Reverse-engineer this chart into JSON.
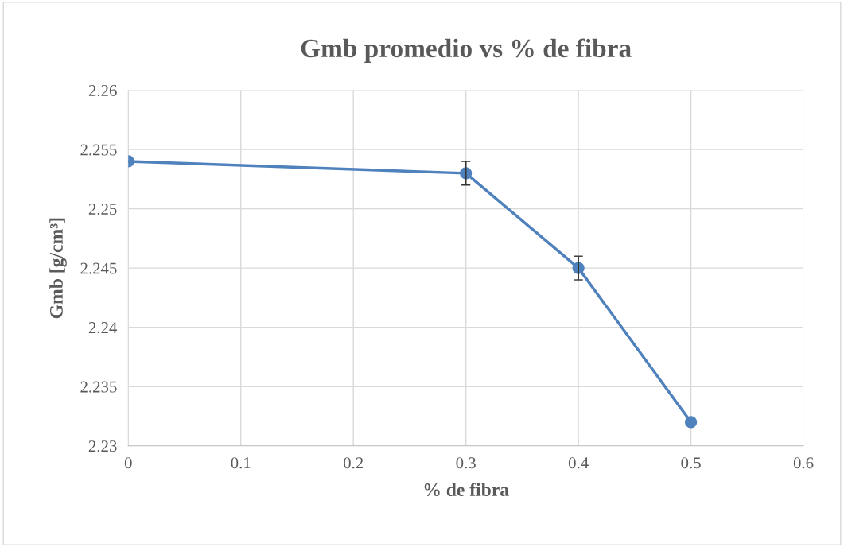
{
  "chart_data": {
    "type": "line",
    "title": "Gmb promedio vs % de fibra",
    "xlabel": "% de fibra",
    "ylabel": "Gmb [g/cm³]",
    "x": [
      0,
      0.3,
      0.4,
      0.5
    ],
    "series": [
      {
        "color": "#4f81bd",
        "values": [
          2.254,
          2.253,
          2.245,
          2.232
        ],
        "errors": [
          null,
          0.001,
          0.001,
          null
        ]
      }
    ],
    "xlim": [
      0,
      0.6
    ],
    "xticks": [
      0,
      0.1,
      0.2,
      0.3,
      0.4,
      0.5,
      0.6
    ],
    "ylim": [
      2.23,
      2.26
    ],
    "yticks": [
      2.23,
      2.235,
      2.24,
      2.245,
      2.25,
      2.255,
      2.26
    ],
    "grid": true,
    "marker": "circle",
    "line_style": "solid"
  }
}
